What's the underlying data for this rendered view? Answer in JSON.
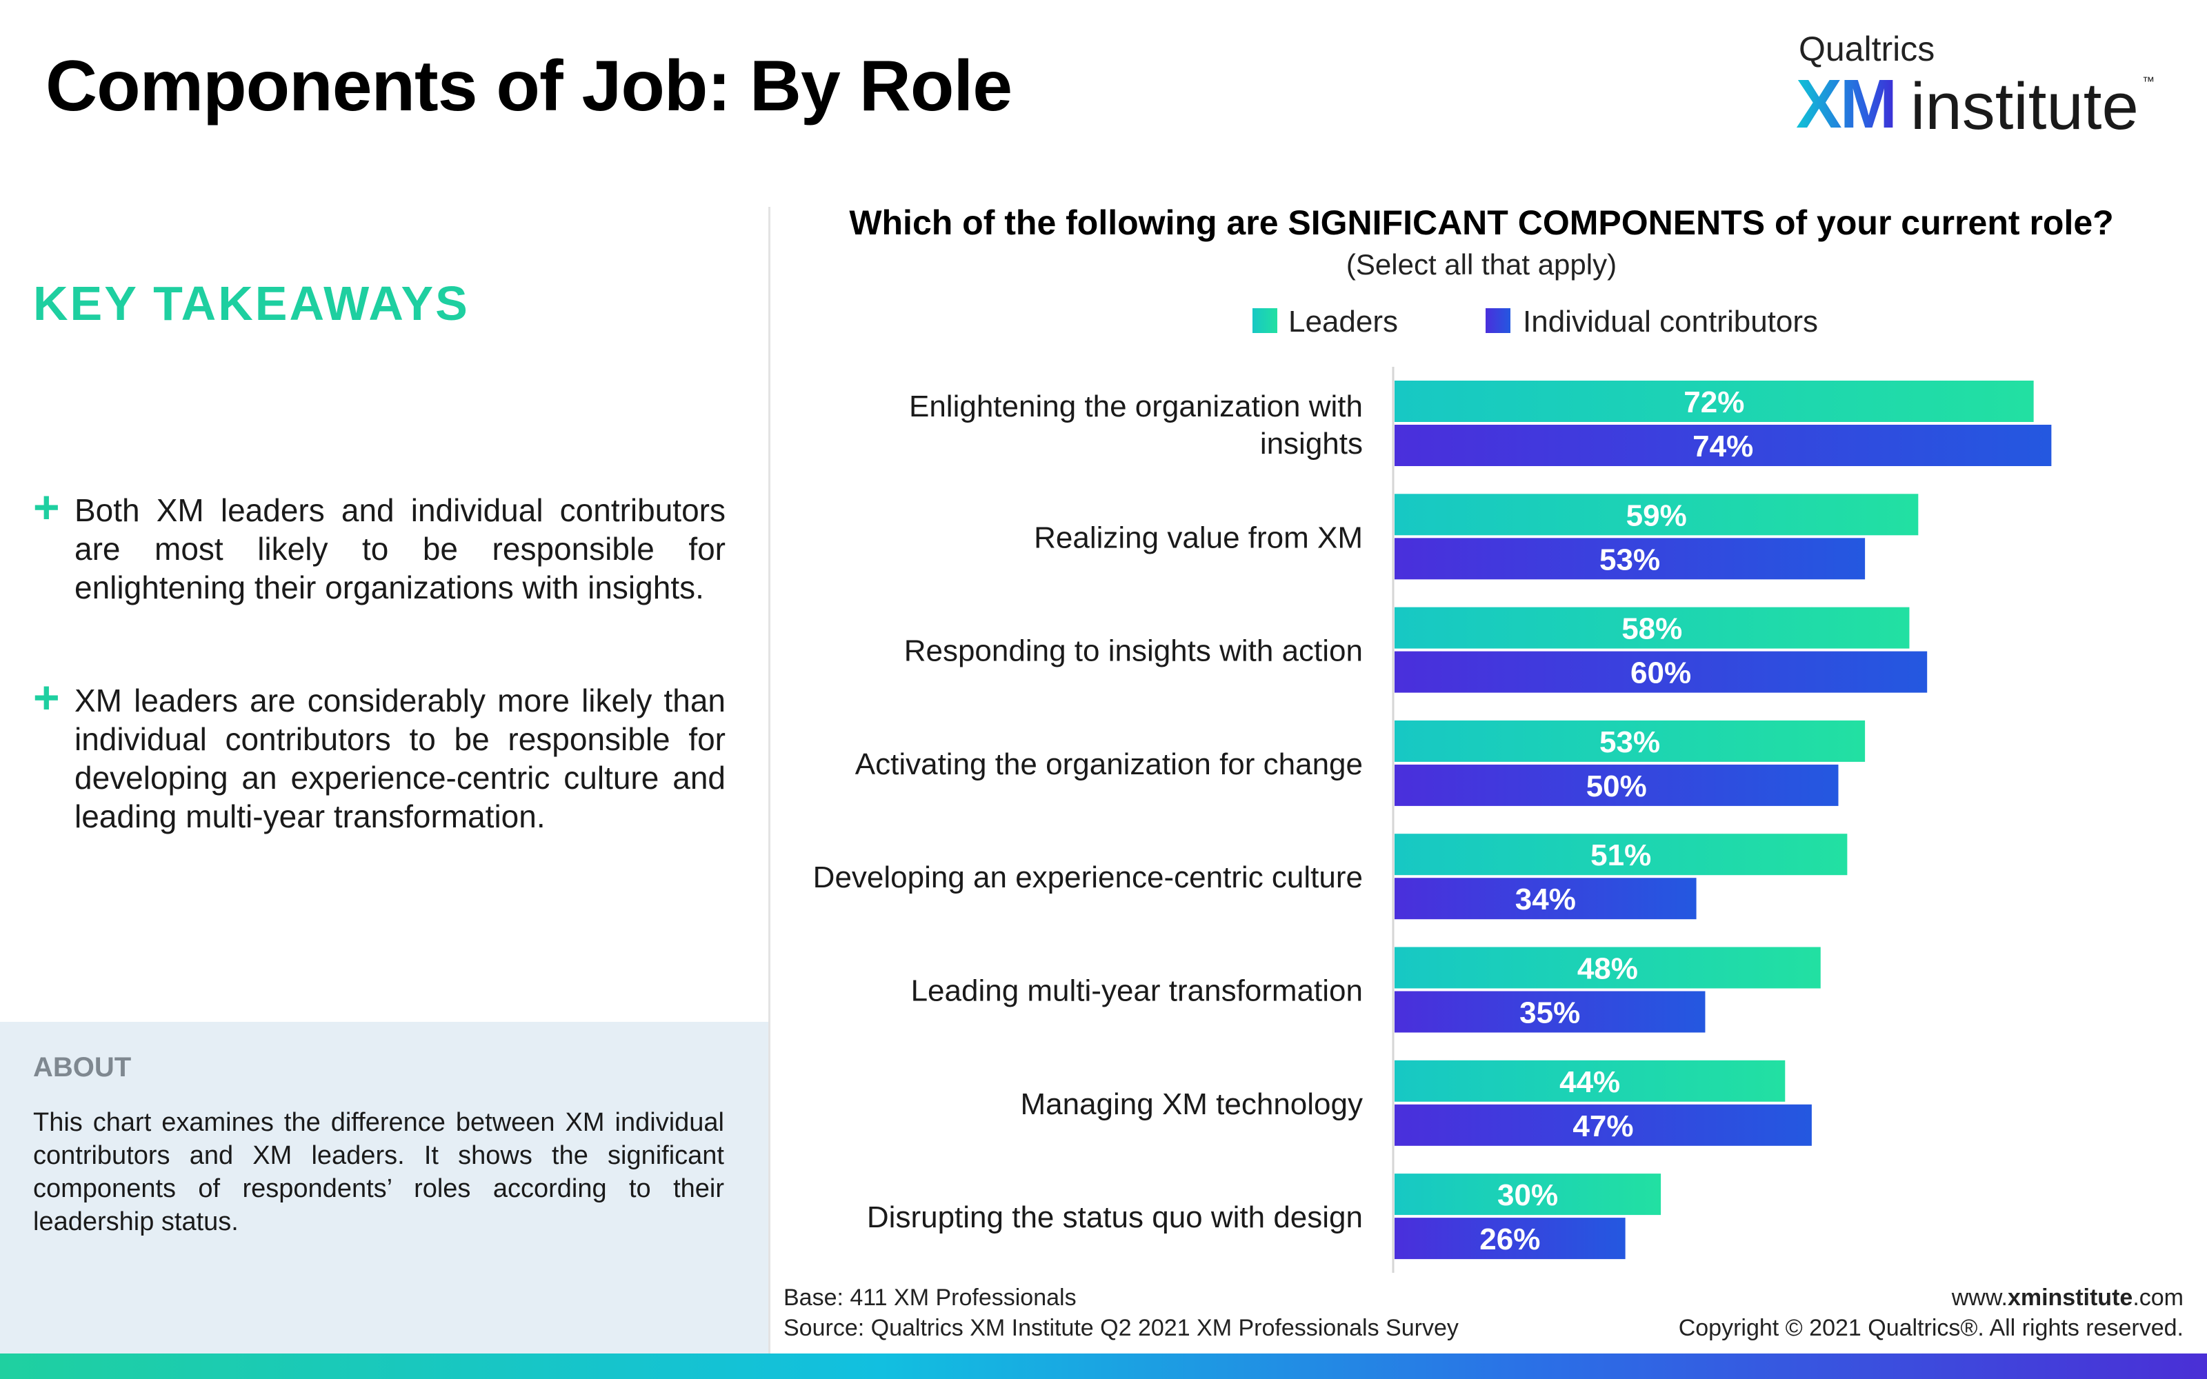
{
  "page": {
    "title": "Components of Job: By Role"
  },
  "logo": {
    "brand": "Qualtrics",
    "xm": "XM",
    "institute": "institute",
    "tm": "™"
  },
  "key_takeaways": {
    "heading": "KEY TAKEAWAYS",
    "items": [
      "Both XM leaders and individual contributors are most likely to be responsible for enlightening their organizations with insights.",
      "XM leaders are considerably more likely than individual contributors to be responsible for developing an experience-centric culture and leading multi-year transformation."
    ]
  },
  "about": {
    "heading": "ABOUT",
    "text": "This chart examines the difference between XM individual contributors and XM leaders. It shows the significant components of respondents’ roles according to their leadership status."
  },
  "footer": {
    "base": "Base: 411 XM Professionals",
    "source": "Source: Qualtrics XM Institute Q2 2021 XM Professionals Survey",
    "site_prefix": "www.",
    "site_bold": "xminstitute",
    "site_suffix": ".com",
    "copyright": "Copyright © 2021 Qualtrics®. All rights reserved."
  },
  "colors": {
    "leaders_start": "#17c8c4",
    "leaders_end": "#22e0a2",
    "ic_start": "#4a2fdc",
    "ic_end": "#2458e0",
    "accent": "#1ecfa0"
  },
  "chart_data": {
    "type": "bar",
    "orientation": "horizontal",
    "title": "Which of the following are SIGNIFICANT COMPONENTS of your current role?",
    "subtitle": "(Select all that apply)",
    "categories": [
      "Enlightening the organization with insights",
      "Realizing value from XM",
      "Responding to insights with action",
      "Activating the organization for change",
      "Developing an experience-centric culture",
      "Leading multi-year transformation",
      "Managing XM technology",
      "Disrupting the status quo with design"
    ],
    "series": [
      {
        "name": "Leaders",
        "values": [
          72,
          59,
          58,
          53,
          51,
          48,
          44,
          30
        ]
      },
      {
        "name": "Individual contributors",
        "values": [
          74,
          53,
          60,
          50,
          34,
          35,
          47,
          26
        ]
      }
    ],
    "value_suffix": "%",
    "xlim": [
      0,
      100
    ],
    "legend_position": "top",
    "grid": false
  }
}
